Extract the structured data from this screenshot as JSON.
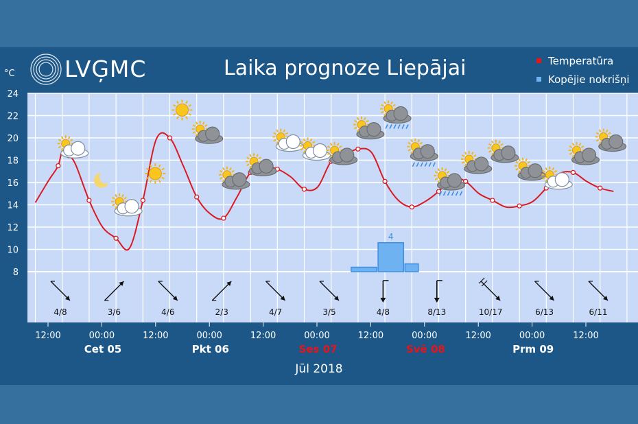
{
  "header": {
    "logo_text": "LVĢMC",
    "title": "Laika prognoze Liepājai",
    "legend": [
      {
        "label": "Temperatūra",
        "color": "#e8141a"
      },
      {
        "label": "Kopējie nokrišņi",
        "color": "#6fb2f2"
      }
    ],
    "unit": "°C",
    "month": "Jūl 2018"
  },
  "chart_data": {
    "type": "line",
    "y_axis": {
      "label": "°C",
      "ticks": [
        8,
        10,
        12,
        14,
        16,
        18,
        20,
        22,
        24
      ],
      "range": [
        8,
        24
      ]
    },
    "time_axis": {
      "ticks": [
        "12:00",
        "00:00",
        "12:00",
        "00:00",
        "12:00",
        "00:00",
        "12:00",
        "00:00",
        "12:00",
        "00:00",
        "12:00"
      ],
      "days": [
        {
          "label": "Cet 05",
          "weekend": false
        },
        {
          "label": "Pkt 06",
          "weekend": false
        },
        {
          "label": "Ses 07",
          "weekend": true
        },
        {
          "label": "Svē 08",
          "weekend": true
        },
        {
          "label": "Prm 09",
          "weekend": false
        }
      ]
    },
    "series": [
      {
        "name": "Temperatūra",
        "color": "#d81b22",
        "points": [
          [
            0,
            14.2
          ],
          [
            1,
            16.2
          ],
          [
            1.7,
            17.5
          ],
          [
            2,
            18.8
          ],
          [
            2.5,
            18.4
          ],
          [
            3,
            17.6
          ],
          [
            4,
            14.4
          ],
          [
            5,
            12.0
          ],
          [
            6,
            11.0
          ],
          [
            7,
            10.1
          ],
          [
            8,
            14.4
          ],
          [
            9,
            19.9
          ],
          [
            10,
            20.0
          ],
          [
            11,
            17.5
          ],
          [
            12,
            14.7
          ],
          [
            13,
            13.2
          ],
          [
            14,
            12.8
          ],
          [
            15,
            14.7
          ],
          [
            16,
            16.9
          ],
          [
            17,
            17.4
          ],
          [
            18,
            17.2
          ],
          [
            19,
            16.5
          ],
          [
            20,
            15.4
          ],
          [
            21,
            15.6
          ],
          [
            22,
            17.9
          ],
          [
            23,
            18.5
          ],
          [
            24,
            19.0
          ],
          [
            25,
            18.7
          ],
          [
            26,
            16.1
          ],
          [
            27,
            14.4
          ],
          [
            28,
            13.8
          ],
          [
            29,
            14.3
          ],
          [
            30,
            15.2
          ],
          [
            31,
            16.4
          ],
          [
            32,
            16.1
          ],
          [
            33,
            15.0
          ],
          [
            34,
            14.4
          ],
          [
            35,
            13.8
          ],
          [
            36,
            13.9
          ],
          [
            37,
            14.3
          ],
          [
            38,
            15.5
          ],
          [
            39,
            16.8
          ],
          [
            40,
            16.9
          ],
          [
            41,
            16.1
          ],
          [
            42,
            15.5
          ],
          [
            43,
            15.2
          ]
        ]
      }
    ],
    "precipitation": {
      "name": "Kopējie nokrišņi",
      "color": "#6fb2f2",
      "bars": [
        {
          "x": 24,
          "width": 2,
          "value": 0.4
        },
        {
          "x": 26,
          "width": 2,
          "value": 2.6,
          "label": "4"
        },
        {
          "x": 28,
          "width": 1.1,
          "value": 0.7
        }
      ]
    },
    "weather_icons": [
      {
        "x": 2,
        "icon": "partly-cloudy-icon",
        "temp": 19.0
      },
      {
        "x": 4,
        "icon": "moon-icon",
        "temp": 16.2
      },
      {
        "x": 6,
        "icon": "partly-cloudy-icon",
        "temp": 13.8
      },
      {
        "x": 8,
        "icon": "sun-icon",
        "temp": 16.8
      },
      {
        "x": 10,
        "icon": "sun-icon",
        "temp": 22.5
      },
      {
        "x": 12,
        "icon": "cloud-sun-dark-icon",
        "temp": 20.3
      },
      {
        "x": 14,
        "icon": "cloud-sun-dark-icon",
        "temp": 16.2
      },
      {
        "x": 16,
        "icon": "cloud-sun-dark-icon",
        "temp": 17.4
      },
      {
        "x": 18,
        "icon": "partly-cloudy-icon",
        "temp": 19.6
      },
      {
        "x": 20,
        "icon": "partly-cloudy-icon",
        "temp": 18.8
      },
      {
        "x": 22,
        "icon": "cloud-sun-dark-icon",
        "temp": 18.4
      },
      {
        "x": 24,
        "icon": "cloud-sun-dark-icon",
        "temp": 20.7
      },
      {
        "x": 26,
        "icon": "rain-icon",
        "temp": 22.0
      },
      {
        "x": 28,
        "icon": "rain-icon",
        "temp": 18.6
      },
      {
        "x": 30,
        "icon": "rain-icon",
        "temp": 16.0
      },
      {
        "x": 32,
        "icon": "cloud-sun-dark-icon",
        "temp": 17.6
      },
      {
        "x": 34,
        "icon": "cloud-sun-dark-icon",
        "temp": 18.6
      },
      {
        "x": 36,
        "icon": "cloud-sun-dark-icon",
        "temp": 17.0
      },
      {
        "x": 38,
        "icon": "partly-cloudy-icon",
        "temp": 16.2
      },
      {
        "x": 40,
        "icon": "cloud-sun-dark-icon",
        "temp": 18.4
      },
      {
        "x": 42,
        "icon": "cloud-sun-dark-icon",
        "temp": 19.6
      }
    ],
    "wind": [
      {
        "label": "4/8",
        "dir": 315,
        "kind": "arrow"
      },
      {
        "label": "3/6",
        "dir": 225,
        "kind": "arrow"
      },
      {
        "label": "4/6",
        "dir": 315,
        "kind": "arrow"
      },
      {
        "label": "2/3",
        "dir": 225,
        "kind": "arrow"
      },
      {
        "label": "4/7",
        "dir": 315,
        "kind": "arrow"
      },
      {
        "label": "3/5",
        "dir": 315,
        "kind": "arrow"
      },
      {
        "label": "4/8",
        "dir": 0,
        "kind": "flag"
      },
      {
        "label": "8/13",
        "dir": 0,
        "kind": "flag"
      },
      {
        "label": "10/17",
        "dir": 315,
        "kind": "double"
      },
      {
        "label": "6/13",
        "dir": 315,
        "kind": "arrow"
      },
      {
        "label": "6/11",
        "dir": 315,
        "kind": "arrow"
      }
    ]
  }
}
